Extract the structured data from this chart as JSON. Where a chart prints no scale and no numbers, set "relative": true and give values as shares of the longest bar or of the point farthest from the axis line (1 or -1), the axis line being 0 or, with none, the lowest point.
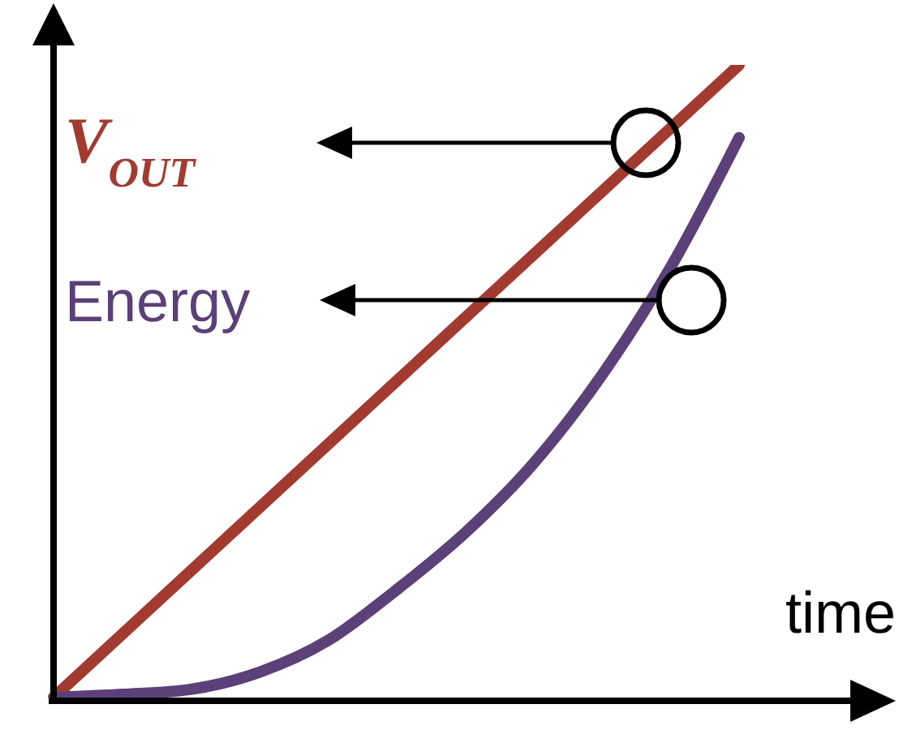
{
  "chart_data": {
    "type": "line",
    "relative": true,
    "xlabel": "time",
    "categories": [
      null,
      null,
      null,
      null,
      null,
      null,
      null,
      null,
      null,
      null,
      null,
      null,
      null
    ],
    "series": [
      {
        "name": "V$_{OUT}$",
        "color": "#a33a30",
        "values": [
          0,
          0.1,
          0.2,
          0.3,
          0.4,
          0.5,
          0.6,
          0.7,
          0.8,
          0.9,
          1,
          null,
          null
        ]
      },
      {
        "name": "Energy",
        "color": "#5b4079",
        "values": [
          0,
          0.005,
          0.013,
          0.04,
          0.09,
          0.17,
          0.26,
          0.37,
          0.51,
          0.68,
          0.885,
          null,
          null
        ]
      }
    ],
    "marker": "none",
    "line_style": "solid",
    "grid": false,
    "legend": false
  }
}
